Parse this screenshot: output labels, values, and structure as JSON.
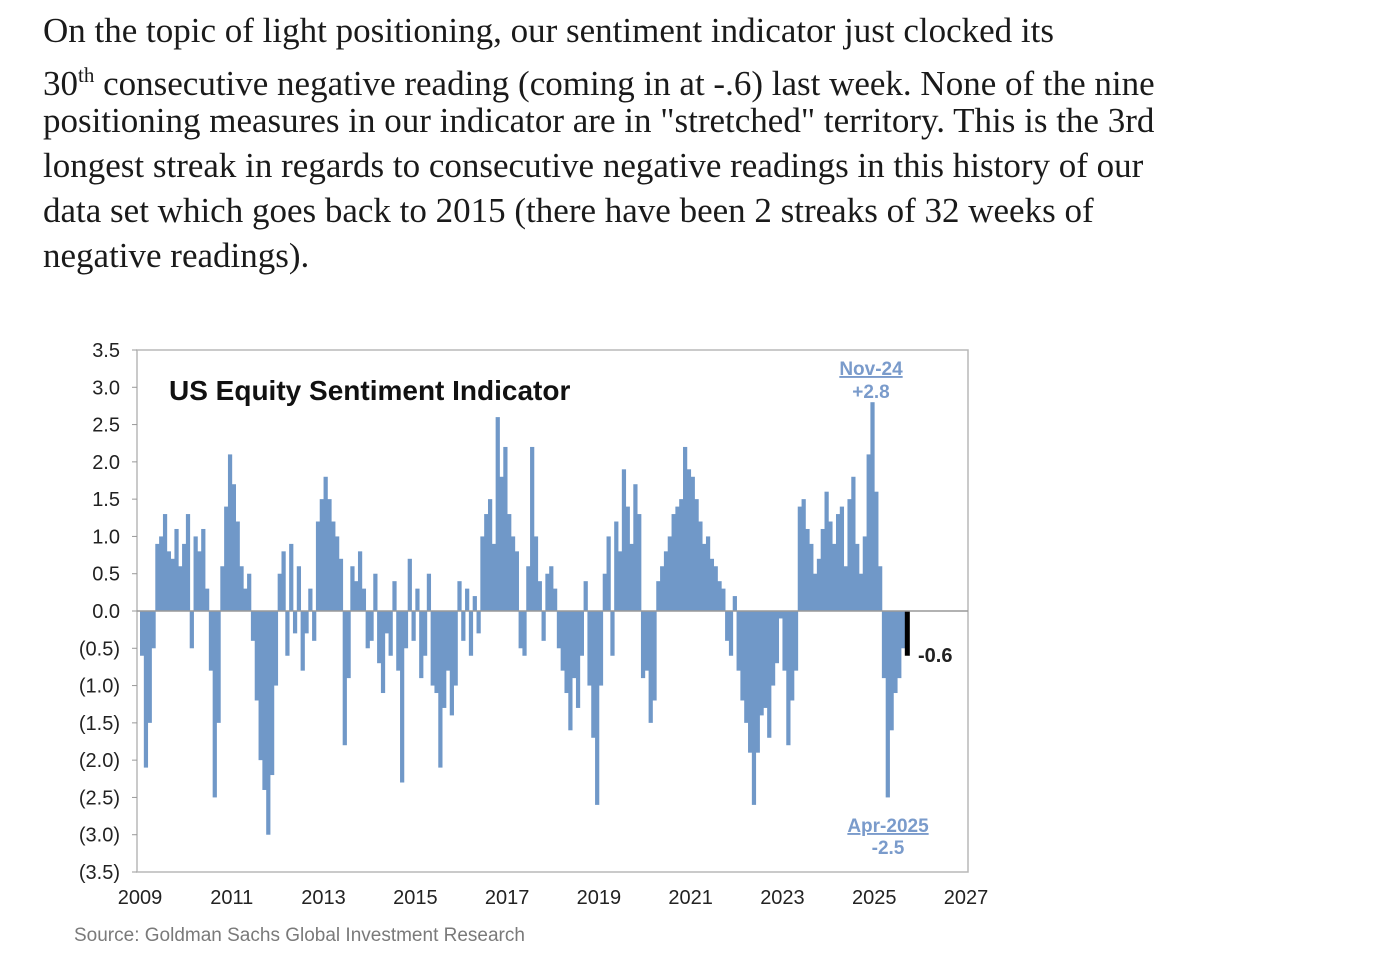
{
  "paragraph": {
    "lines": [
      "On the topic of light positioning, our sentiment indicator just clocked its",
      "",
      "positioning measures in our indicator are in \"stretched\" territory. This is the 3rd",
      "longest streak in regards to consecutive negative readings in this history of our",
      "data set which goes back to 2015 (there have been 2 streaks of 32 weeks of",
      "negative readings)."
    ],
    "line2_num": "30",
    "line2_sup": "th",
    "line2_rest": " consecutive negative reading (coming in at -.6) last week. None of the nine"
  },
  "chart_data": {
    "type": "bar",
    "title": "US Equity Sentiment Indicator",
    "xlabel": "",
    "ylabel": "",
    "x_start": 2009,
    "x_step_months": 1,
    "xlim": [
      2009,
      2027
    ],
    "ylim": [
      -3.5,
      3.5
    ],
    "x_ticks": [
      "2009",
      "2011",
      "2013",
      "2015",
      "2017",
      "2019",
      "2021",
      "2023",
      "2025",
      "2027"
    ],
    "y_ticks": [
      "3.5",
      "3.0",
      "2.5",
      "2.0",
      "1.5",
      "1.0",
      "0.5",
      "0.0",
      "(0.5)",
      "(1.0)",
      "(1.5)",
      "(2.0)",
      "(2.5)",
      "(3.0)",
      "(3.5)"
    ],
    "bar_color": "#7098c8",
    "latest_color": "#000000",
    "values": [
      -0.6,
      -2.1,
      -1.5,
      -0.5,
      0.9,
      1.0,
      1.3,
      0.8,
      0.7,
      1.1,
      0.6,
      0.9,
      1.3,
      -0.5,
      1.0,
      0.8,
      1.1,
      0.3,
      -0.8,
      -2.5,
      -1.5,
      0.6,
      1.4,
      2.1,
      1.7,
      1.2,
      0.6,
      0.3,
      0.5,
      -0.4,
      -1.2,
      -2.0,
      -2.4,
      -3.0,
      -2.2,
      -1.0,
      0.5,
      0.8,
      -0.6,
      0.9,
      -0.3,
      0.6,
      -0.8,
      -0.3,
      0.3,
      -0.4,
      1.2,
      1.5,
      1.8,
      1.5,
      1.2,
      1.0,
      0.7,
      -1.8,
      -0.9,
      0.6,
      0.4,
      0.8,
      0.3,
      -0.5,
      -0.4,
      0.5,
      -0.7,
      -1.1,
      -0.3,
      -0.6,
      0.4,
      -0.8,
      -2.3,
      -0.5,
      0.7,
      -0.4,
      0.3,
      -0.9,
      -0.6,
      0.5,
      -1.0,
      -1.1,
      -2.1,
      -1.3,
      -0.8,
      -1.4,
      -1.0,
      0.4,
      -0.4,
      0.3,
      -0.6,
      0.2,
      -0.3,
      1.0,
      1.3,
      1.5,
      0.9,
      2.6,
      1.8,
      2.2,
      1.3,
      1.0,
      0.8,
      -0.5,
      -0.6,
      0.6,
      2.2,
      1.0,
      0.4,
      -0.4,
      0.5,
      0.6,
      0.3,
      -0.5,
      -0.8,
      -1.1,
      -1.6,
      -0.9,
      -1.3,
      -0.6,
      0.4,
      -1.0,
      -1.7,
      -2.6,
      -1.0,
      0.5,
      1.0,
      -0.6,
      1.2,
      0.8,
      1.9,
      1.4,
      0.9,
      1.7,
      1.3,
      -0.9,
      -0.8,
      -1.5,
      -1.2,
      0.4,
      0.6,
      0.8,
      1.0,
      1.3,
      1.4,
      1.5,
      2.2,
      1.9,
      1.8,
      1.5,
      1.2,
      0.9,
      1.0,
      0.7,
      0.6,
      0.4,
      0.3,
      -0.4,
      -0.6,
      0.2,
      -0.8,
      -1.2,
      -1.5,
      -1.9,
      -2.6,
      -1.9,
      -1.4,
      -1.3,
      -1.7,
      -1.0,
      -0.7,
      -0.1,
      -0.8,
      -1.8,
      -1.2,
      -0.8,
      1.4,
      1.5,
      1.1,
      0.9,
      0.5,
      0.7,
      1.1,
      1.6,
      1.2,
      0.9,
      1.3,
      1.4,
      0.6,
      1.5,
      1.8,
      0.9,
      0.5,
      1.0,
      2.1,
      2.8,
      1.6,
      0.6,
      -0.9,
      -2.5,
      -1.6,
      -1.1,
      -0.9,
      -0.5,
      -0.6
    ],
    "annotations": {
      "peak_date": "Nov-24",
      "peak_value": "+2.8",
      "trough_date": "Apr-2025",
      "trough_value": "-2.5",
      "latest_value": "-0.6"
    },
    "source": "Source: Goldman Sachs Global Investment Research"
  }
}
